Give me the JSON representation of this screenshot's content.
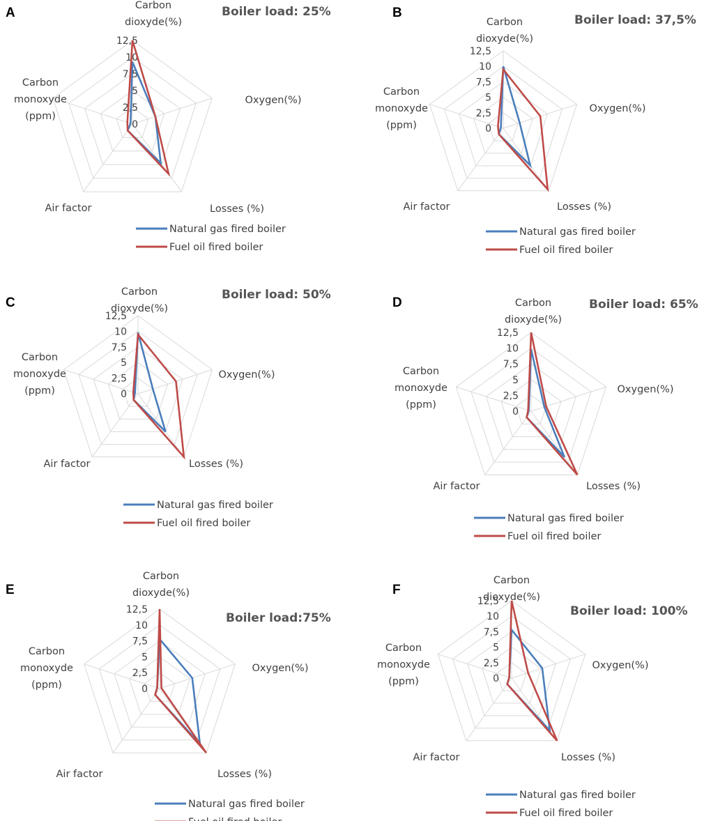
{
  "colors": {
    "natural_gas": "#4a7ebb",
    "fuel_oil": "#be4b48",
    "grid": "#d9d9d9",
    "text": "#404040"
  },
  "chart_data": [
    {
      "type": "radar",
      "panel": "A",
      "title": "Boiler load: 25%",
      "axes": [
        "Carbon dioxyde(%)",
        "Oxygen(%)",
        "Losses (%)",
        "Air factor",
        "Carbon monoxyde (ppm)"
      ],
      "ticks": [
        "0",
        "2,5",
        "5",
        "7,5",
        "10",
        "12,5"
      ],
      "range": [
        0,
        12.5
      ],
      "legend": [
        "Natural gas fired boiler",
        "Fuel oil fired boiler"
      ],
      "series": [
        {
          "name": "Natural gas fired boiler",
          "values": [
            9.3,
            3.6,
            7.2,
            1.2,
            0.3
          ]
        },
        {
          "name": "Fuel oil fired boiler",
          "values": [
            12.5,
            3.6,
            9.2,
            1.2,
            0.8
          ]
        }
      ]
    },
    {
      "type": "radar",
      "panel": "B",
      "title": "Boiler load: 37,5%",
      "axes": [
        "Carbon dioxyde(%)",
        "Oxygen(%)",
        "Losses (%)",
        "Air factor",
        "Carbon monoxyde (ppm)"
      ],
      "ticks": [
        "0",
        "2,5",
        "5",
        "7,5",
        "10",
        "12,5"
      ],
      "range": [
        0,
        12.5
      ],
      "legend": [
        "Natural gas fired boiler",
        "Fuel oil fired boiler"
      ],
      "series": [
        {
          "name": "Natural gas fired boiler",
          "values": [
            10.0,
            2.8,
            7.4,
            1.2,
            0.4
          ]
        },
        {
          "name": "Fuel oil fired boiler",
          "values": [
            9.5,
            6.3,
            12.2,
            1.2,
            0.9
          ]
        }
      ]
    },
    {
      "type": "radar",
      "panel": "C",
      "title": "Boiler load: 50%",
      "axes": [
        "Carbon dioxyde(%)",
        "Oxygen(%)",
        "Losses (%)",
        "Air factor",
        "Carbon monoxyde (ppm)"
      ],
      "ticks": [
        "0",
        "2,5",
        "5",
        "7,5",
        "10",
        "12,5"
      ],
      "range": [
        0,
        12.5
      ],
      "legend": [
        "Natural gas fired boiler",
        "Fuel oil fired boiler"
      ],
      "series": [
        {
          "name": "Natural gas fired boiler",
          "values": [
            9.8,
            2.5,
            7.5,
            1.2,
            0.5
          ]
        },
        {
          "name": "Fuel oil fired boiler",
          "values": [
            9.5,
            6.4,
            12.5,
            1.2,
            0.8
          ]
        }
      ]
    },
    {
      "type": "radar",
      "panel": "D",
      "title": "Boiler load: 65%",
      "axes": [
        "Carbon dioxyde(%)",
        "Oxygen(%)",
        "Losses (%)",
        "Air factor",
        "Carbon monoxyde (ppm)"
      ],
      "ticks": [
        "0",
        "2,5",
        "5",
        "7,5",
        "10",
        "12,5"
      ],
      "range": [
        0,
        12.5
      ],
      "legend": [
        "Natural gas fired boiler",
        "Fuel oil fired boiler"
      ],
      "series": [
        {
          "name": "Natural gas fired boiler",
          "values": [
            9.8,
            2.2,
            9.0,
            1.2,
            0.4
          ]
        },
        {
          "name": "Fuel oil fired boiler",
          "values": [
            12.5,
            2.5,
            12.5,
            1.2,
            0.5
          ]
        }
      ]
    },
    {
      "type": "radar",
      "panel": "E",
      "title": "Boiler load:75%",
      "axes": [
        "Carbon dioxyde(%)",
        "Oxygen(%)",
        "Losses (%)",
        "Air factor",
        "Carbon monoxyde (ppm)"
      ],
      "ticks": [
        "0",
        "2,5",
        "5",
        "7,5",
        "10",
        "12,5"
      ],
      "range": [
        0,
        12.5
      ],
      "legend": [
        "Natural gas fired boiler",
        "Fuel oil fired boiler"
      ],
      "series": [
        {
          "name": "Natural gas fired boiler",
          "values": [
            7.8,
            5.4,
            10.8,
            1.2,
            0.4
          ]
        },
        {
          "name": "Fuel oil fired boiler",
          "values": [
            12.5,
            0.3,
            12.5,
            1.2,
            0.4
          ]
        }
      ]
    },
    {
      "type": "radar",
      "panel": "F",
      "title": "Boiler load: 100%",
      "axes": [
        "Carbon dioxyde(%)",
        "Oxygen(%)",
        "Losses (%)",
        "Air factor",
        "Carbon monoxyde (ppm)"
      ],
      "ticks": [
        "0",
        "2,5",
        "5",
        "7,5",
        "10",
        "12,5"
      ],
      "range": [
        0,
        12.5
      ],
      "legend": [
        "Natural gas fired boiler",
        "Fuel oil fired boiler"
      ],
      "series": [
        {
          "name": "Natural gas fired boiler",
          "values": [
            7.8,
            5.2,
            10.5,
            1.2,
            0.4
          ]
        },
        {
          "name": "Fuel oil fired boiler",
          "values": [
            12.5,
            2.8,
            12.5,
            1.2,
            0.4
          ]
        }
      ]
    }
  ]
}
